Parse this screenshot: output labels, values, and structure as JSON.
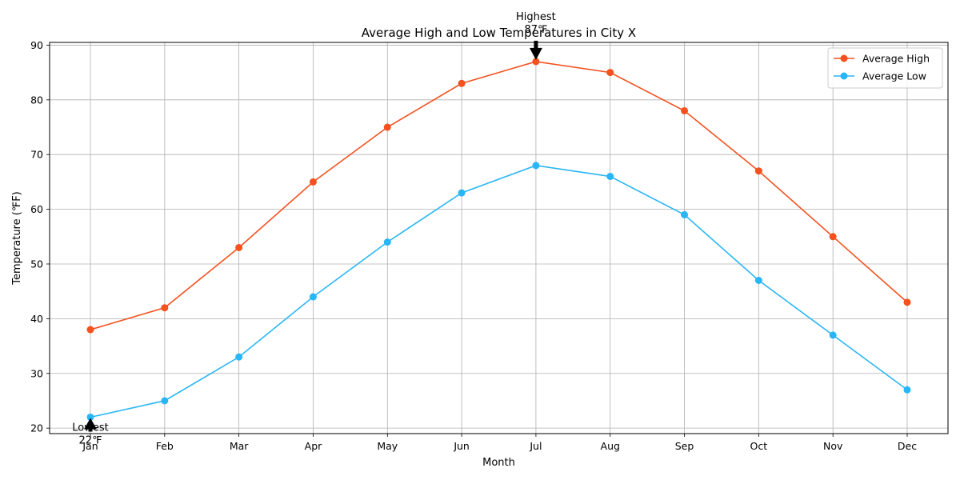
{
  "chart_data": {
    "type": "line",
    "title": "Average High and Low Temperatures in City X",
    "xlabel": "Month",
    "ylabel": "Temperature (℉F)",
    "categories": [
      "Jan",
      "Feb",
      "Mar",
      "Apr",
      "May",
      "Jun",
      "Jul",
      "Aug",
      "Sep",
      "Oct",
      "Nov",
      "Dec"
    ],
    "ylim": [
      19,
      90.5
    ],
    "yticks": [
      20,
      30,
      40,
      50,
      60,
      70,
      80,
      90
    ],
    "grid": true,
    "legend_position": "top-right",
    "series": [
      {
        "name": "Average High",
        "color": "#f4511e",
        "values": [
          38,
          42,
          53,
          65,
          75,
          83,
          87,
          85,
          78,
          67,
          55,
          43
        ]
      },
      {
        "name": "Average Low",
        "color": "#29b6f6",
        "values": [
          22,
          25,
          33,
          44,
          54,
          63,
          68,
          66,
          59,
          47,
          37,
          27
        ]
      }
    ],
    "annotations": [
      {
        "label": "Highest",
        "value_text": "87℉",
        "category": "Jul",
        "value": 87,
        "direction": "down"
      },
      {
        "label": "Lowest",
        "value_text": "22℉",
        "category": "Jan",
        "value": 22,
        "direction": "up"
      }
    ]
  }
}
